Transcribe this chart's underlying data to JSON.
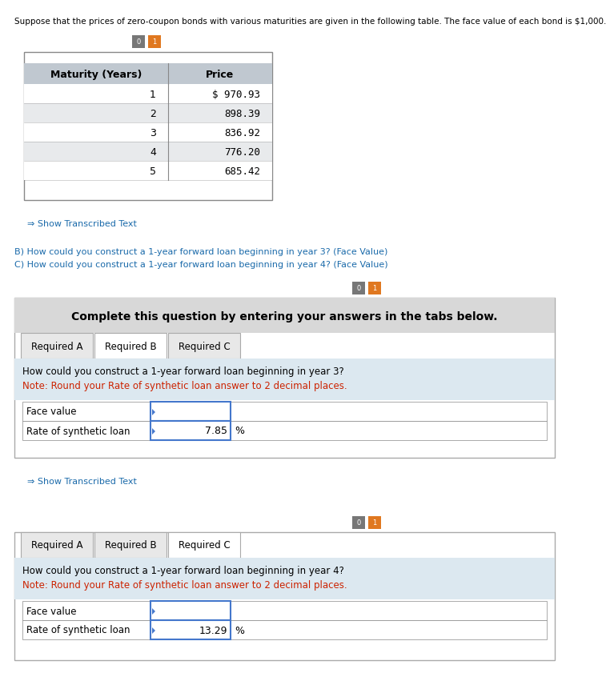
{
  "intro_text": "Suppose that the prices of zero-coupon bonds with various maturities are given in the following table. The face value of each bond is $1,000.",
  "table_headers": [
    "Maturity (Years)",
    "Price"
  ],
  "table_rows": [
    [
      "1",
      "$ 970.93"
    ],
    [
      "2",
      "898.39"
    ],
    [
      "3",
      "836.92"
    ],
    [
      "4",
      "776.20"
    ],
    [
      "5",
      "685.42"
    ]
  ],
  "show_transcribed_text": "Show Transcribed Text",
  "questions": [
    "B) How could you construct a 1-year forward loan beginning in year 3? (Face Value)",
    "C) How could you construct a 1-year forward loan beginning in year 4? (Face Value)"
  ],
  "complete_text": "Complete this question by entering your answers in the tabs below.",
  "tabs": [
    "Required A",
    "Required B",
    "Required C"
  ],
  "panel1_active_tab": 1,
  "panel1_question": "How could you construct a 1-year forward loan beginning in year 3?",
  "panel1_note": "Note: Round your Rate of synthetic loan answer to 2 decimal places.",
  "panel1_fields": [
    "Face value",
    "Rate of synthetic loan"
  ],
  "panel1_values": [
    "",
    "7.85"
  ],
  "panel1_units": [
    "",
    "%"
  ],
  "panel2_active_tab": 2,
  "panel2_question": "How could you construct a 1-year forward loan beginning in year 4?",
  "panel2_note": "Note: Round your Rate of synthetic loan answer to 2 decimal places.",
  "panel2_fields": [
    "Face value",
    "Rate of synthetic loan"
  ],
  "panel2_values": [
    "",
    "13.29"
  ],
  "panel2_units": [
    "",
    "%"
  ],
  "bg_color": "#ffffff",
  "table_header_bg": "#c0c8d0",
  "table_row_alt_bg": "#e8eaec",
  "table_border": "#888888",
  "panel_bg": "#f5f5f5",
  "panel_header_bg": "#d8d8d8",
  "question_bg": "#dce8f0",
  "tab_active_bg": "#ffffff",
  "tab_inactive_bg": "#e8e8e8",
  "tab_border": "#aaaaaa",
  "input_border": "#4477cc",
  "text_color_black": "#000000",
  "text_color_blue": "#1a6aaa",
  "text_color_red": "#cc2200",
  "text_color_gray": "#444444",
  "icon_gray": "#777777",
  "icon_orange": "#e07820",
  "font_size_intro": 7.5,
  "font_size_table": 9,
  "font_size_label": 8.5,
  "font_size_question": 8.5,
  "font_size_complete": 10,
  "font_size_tab": 8.5
}
